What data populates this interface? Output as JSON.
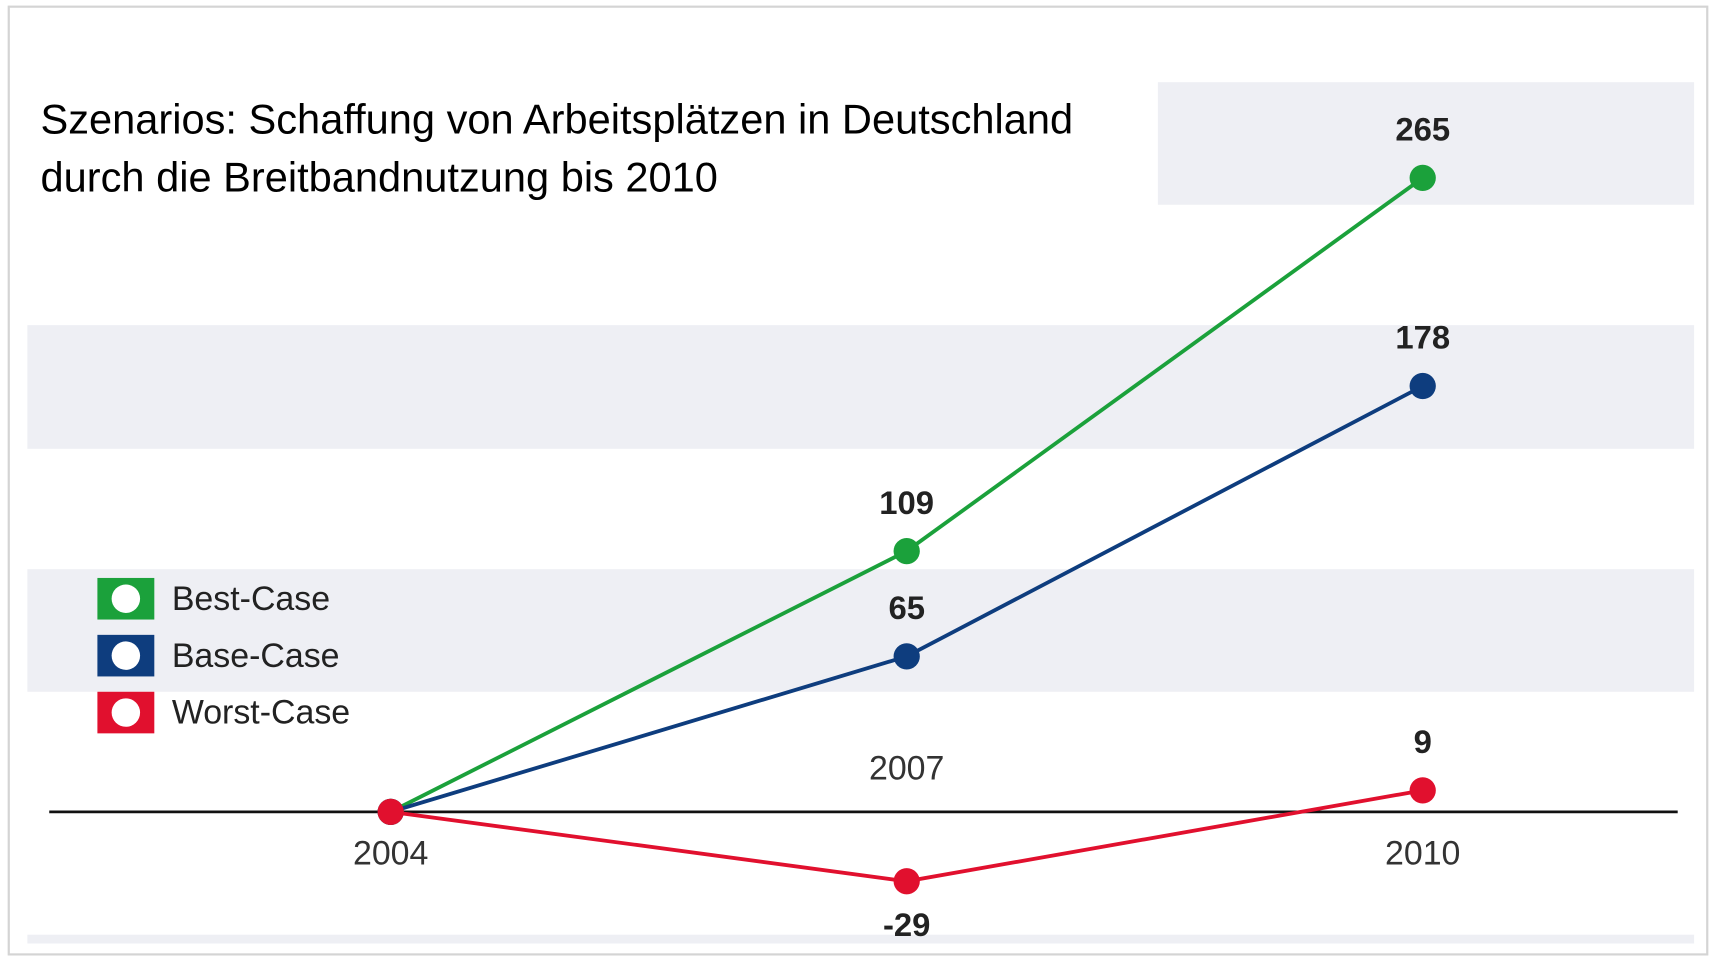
{
  "chart_data": {
    "type": "line",
    "title": "Szenarios: Schaffung von Arbeitsplätzen in Deutschland durch die Breitbandnutzung bis 2010",
    "categories": [
      "2004",
      "2007",
      "2010"
    ],
    "series": [
      {
        "name": "Best-Case",
        "color": "#1ba13b",
        "values": [
          0,
          109,
          265
        ],
        "value_labels": [
          null,
          "109",
          "265"
        ]
      },
      {
        "name": "Base-Case",
        "color": "#0e3d7e",
        "values": [
          0,
          65,
          178
        ],
        "value_labels": [
          null,
          "65",
          "178"
        ]
      },
      {
        "name": "Worst-Case",
        "color": "#e1102e",
        "values": [
          0,
          -29,
          9
        ],
        "value_labels": [
          null,
          "-29",
          "9"
        ]
      }
    ],
    "ylim": [
      -55,
      305
    ],
    "legend": "left"
  }
}
